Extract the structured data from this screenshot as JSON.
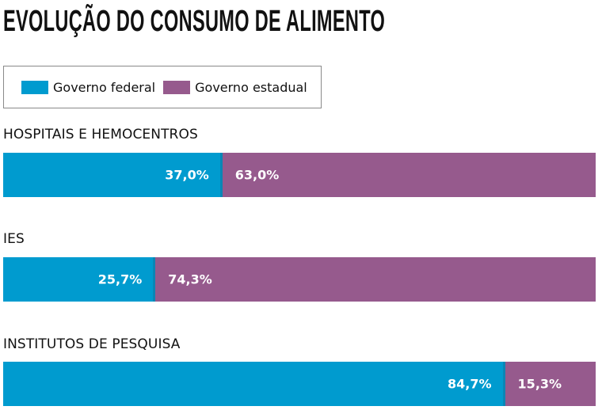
{
  "title": "EVOLUÇÃO DO CONSUMO DE ALIMENTO",
  "colors": {
    "federal": "#009bcf",
    "estadual": "#965a8d"
  },
  "chart_data": {
    "type": "bar",
    "orientation": "horizontal",
    "stacked": true,
    "title": "EVOLUÇÃO DO CONSUMO DE ALIMENTO",
    "legend": {
      "position": "top-left",
      "entries": [
        "Governo federal",
        "Governo estadual"
      ]
    },
    "categories": [
      "HOSPITAIS E HEMOCENTROS",
      "IES",
      "INSTITUTOS DE PESQUISA"
    ],
    "series": [
      {
        "name": "Governo federal",
        "values": [
          37.0,
          25.7,
          84.7
        ],
        "labels": [
          "37,0%",
          "25,7%",
          "84,7%"
        ]
      },
      {
        "name": "Governo estadual",
        "values": [
          63.0,
          74.3,
          15.3
        ],
        "labels": [
          "63,0%",
          "74,3%",
          "15,3%"
        ]
      }
    ],
    "xlim": [
      0,
      100
    ],
    "unit": "%"
  }
}
